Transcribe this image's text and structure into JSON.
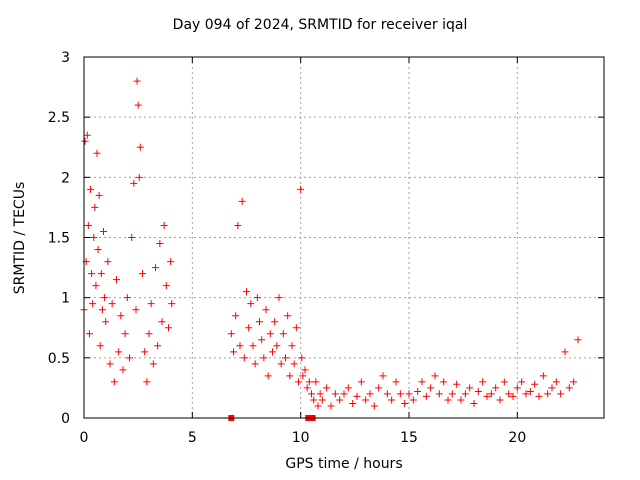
{
  "chart_data": {
    "type": "scatter",
    "title": "Day 094 of 2024, SRMTID for receiver iqal",
    "xlabel": "GPS time / hours",
    "ylabel": "SRMTID / TECUs",
    "xlim": [
      0,
      24
    ],
    "ylim": [
      0,
      3
    ],
    "xticks": [
      0,
      5,
      10,
      15,
      20
    ],
    "yticks": [
      0,
      0.5,
      1,
      1.5,
      2,
      2.5,
      3
    ],
    "xtick_labels": [
      "0",
      "5",
      "10",
      "15",
      "20"
    ],
    "ytick_labels": [
      "0",
      "0.5",
      "1",
      "1.5",
      "2",
      "2.5",
      "3"
    ],
    "grid": true,
    "marker": "+",
    "color": "#ff0000",
    "series": [
      {
        "name": "SRMTID",
        "x": [
          0.0,
          0.05,
          0.1,
          0.15,
          0.2,
          0.25,
          0.3,
          0.35,
          0.4,
          0.45,
          0.5,
          0.55,
          0.6,
          0.65,
          0.7,
          0.75,
          0.8,
          0.85,
          0.9,
          0.95,
          1.0,
          1.1,
          1.2,
          1.3,
          1.4,
          1.5,
          1.6,
          1.7,
          1.8,
          1.9,
          2.0,
          2.1,
          2.2,
          2.3,
          2.4,
          2.45,
          2.5,
          2.55,
          2.6,
          2.7,
          2.8,
          2.9,
          3.0,
          3.1,
          3.2,
          3.3,
          3.4,
          3.5,
          3.6,
          3.7,
          3.8,
          3.9,
          4.0,
          4.05,
          6.8,
          6.9,
          7.0,
          7.1,
          7.2,
          7.3,
          7.4,
          7.5,
          7.6,
          7.7,
          7.8,
          7.9,
          8.0,
          8.1,
          8.2,
          8.3,
          8.4,
          8.5,
          8.6,
          8.7,
          8.8,
          8.9,
          9.0,
          9.1,
          9.2,
          9.3,
          9.4,
          9.5,
          9.6,
          9.7,
          9.8,
          9.9,
          10.0,
          10.05,
          10.1,
          10.2,
          10.3,
          10.4,
          10.5,
          10.6,
          10.7,
          10.8,
          10.9,
          11.0,
          11.2,
          11.4,
          11.6,
          11.8,
          12.0,
          12.2,
          12.4,
          12.6,
          12.8,
          13.0,
          13.2,
          13.4,
          13.6,
          13.8,
          14.0,
          14.2,
          14.4,
          14.6,
          14.8,
          15.0,
          15.2,
          15.4,
          15.6,
          15.8,
          16.0,
          16.2,
          16.4,
          16.6,
          16.8,
          17.0,
          17.2,
          17.4,
          17.6,
          17.8,
          18.0,
          18.2,
          18.4,
          18.6,
          18.8,
          19.0,
          19.2,
          19.4,
          19.6,
          19.8,
          20.0,
          20.2,
          20.4,
          20.6,
          20.8,
          21.0,
          21.2,
          21.4,
          21.6,
          21.8,
          22.0,
          22.2,
          22.4,
          22.6,
          22.8
        ],
        "y": [
          0.9,
          2.3,
          1.3,
          2.35,
          1.6,
          0.7,
          1.9,
          1.2,
          0.95,
          1.5,
          1.75,
          1.1,
          2.2,
          1.4,
          1.85,
          0.6,
          1.2,
          0.9,
          1.55,
          1.0,
          0.8,
          1.3,
          0.45,
          0.95,
          0.3,
          1.15,
          0.55,
          0.85,
          0.4,
          0.7,
          1.0,
          0.5,
          1.5,
          1.95,
          0.9,
          2.8,
          2.6,
          2.0,
          2.25,
          1.2,
          0.55,
          0.3,
          0.7,
          0.95,
          0.45,
          1.25,
          0.6,
          1.45,
          0.8,
          1.6,
          1.1,
          0.75,
          1.3,
          0.95,
          0.7,
          0.55,
          0.85,
          1.6,
          0.6,
          1.8,
          0.5,
          1.05,
          0.75,
          0.95,
          0.6,
          0.45,
          1.0,
          0.8,
          0.65,
          0.5,
          0.9,
          0.35,
          0.7,
          0.55,
          0.8,
          0.6,
          1.0,
          0.45,
          0.7,
          0.5,
          0.85,
          0.35,
          0.6,
          0.45,
          0.75,
          0.3,
          1.9,
          0.5,
          0.35,
          0.4,
          0.25,
          0.3,
          0.2,
          0.15,
          0.3,
          0.1,
          0.2,
          0.15,
          0.25,
          0.1,
          0.2,
          0.15,
          0.2,
          0.25,
          0.12,
          0.18,
          0.3,
          0.15,
          0.2,
          0.1,
          0.25,
          0.35,
          0.2,
          0.15,
          0.3,
          0.2,
          0.12,
          0.2,
          0.15,
          0.22,
          0.3,
          0.18,
          0.25,
          0.35,
          0.2,
          0.3,
          0.15,
          0.2,
          0.28,
          0.15,
          0.2,
          0.25,
          0.12,
          0.22,
          0.3,
          0.18,
          0.2,
          0.25,
          0.15,
          0.3,
          0.2,
          0.18,
          0.25,
          0.3,
          0.2,
          0.22,
          0.28,
          0.18,
          0.35,
          0.2,
          0.25,
          0.3,
          0.2,
          0.55,
          0.25,
          0.3,
          0.65
        ]
      }
    ],
    "zero_markers": [
      {
        "x": 6.8,
        "y": 0
      },
      {
        "x": 10.35,
        "y": 0
      },
      {
        "x": 10.55,
        "y": 0
      }
    ]
  }
}
